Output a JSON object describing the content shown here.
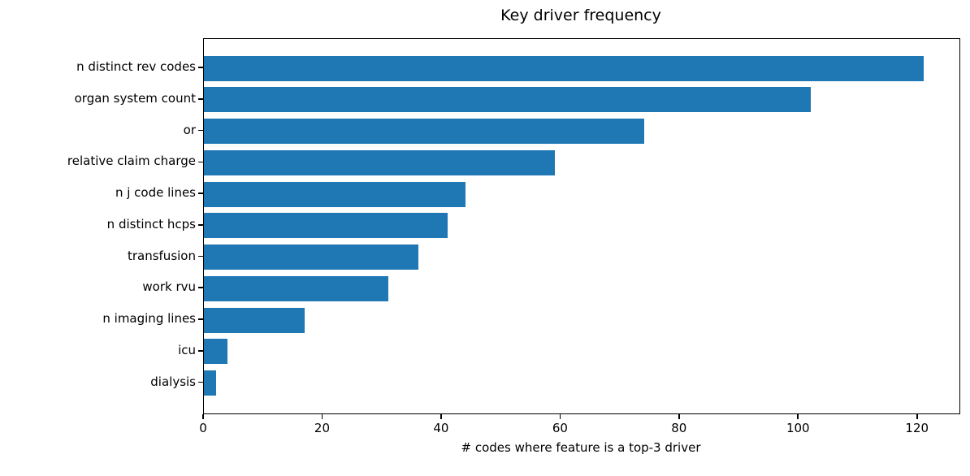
{
  "chart_data": {
    "type": "bar",
    "orientation": "horizontal",
    "title": "Key driver frequency",
    "xlabel": "# codes where feature is a top-3 driver",
    "ylabel": "",
    "categories": [
      "n distinct rev codes",
      "organ system count",
      "or",
      "relative claim charge",
      "n j code lines",
      "n distinct hcps",
      "transfusion",
      "work rvu",
      "n imaging lines",
      "icu",
      "dialysis"
    ],
    "values": [
      121,
      102,
      74,
      59,
      44,
      41,
      36,
      31,
      17,
      4,
      2
    ],
    "xticks": [
      0,
      20,
      40,
      60,
      80,
      100,
      120
    ],
    "xlim": [
      0,
      127
    ],
    "bar_color": "#1f77b4",
    "text_color": "#000000",
    "grid": false,
    "legend": null,
    "background_color": "#ffffff"
  }
}
